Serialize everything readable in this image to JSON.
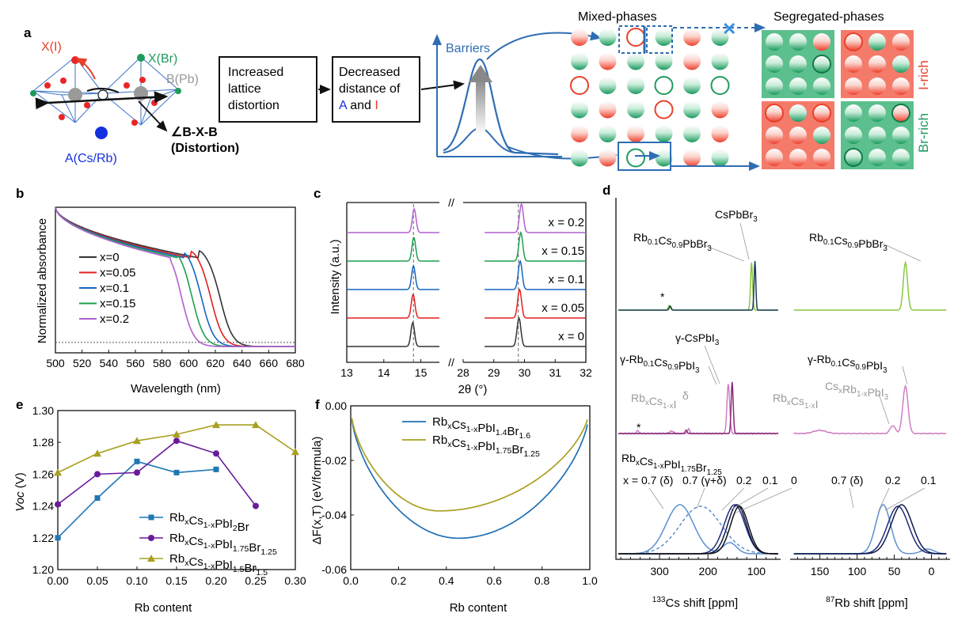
{
  "panel_labels": {
    "a": "a",
    "b": "b",
    "c": "c",
    "d": "d",
    "e": "e",
    "f": "f"
  },
  "schematic": {
    "x_i": "X(I)",
    "x_br": "X(Br)",
    "b_pb": "B(Pb)",
    "a_site": "A(Cs/Rb)",
    "angle": "∠B-X-B",
    "distortion": "(Distortion)",
    "box1": [
      "Increased",
      "lattice",
      "distortion"
    ],
    "box2_l1": "Decreased",
    "box2_l2": "distance of",
    "box2_a": "A",
    "box2_and": " and ",
    "box2_i": "I",
    "barriers": "Barriers",
    "mixed": "Mixed-phases",
    "segregated": "Segregated-phases",
    "i_rich": "I-rich",
    "br_rich": "Br-rich",
    "cross": "✕",
    "colors": {
      "iodine": "#f0402a",
      "bromine": "#1f9a5e",
      "a_site": "#1530e0",
      "barrier": "#2f6db3"
    }
  },
  "chart_data": [
    {
      "panel": "b",
      "type": "line",
      "xlabel": "Wavelength (nm)",
      "ylabel": "Normalized absorbance",
      "xlim": [
        500,
        680
      ],
      "xticks": [
        500,
        520,
        540,
        560,
        580,
        600,
        620,
        640,
        660,
        680
      ],
      "ylim": [
        0,
        1
      ],
      "series": [
        {
          "name": "x=0",
          "color": "#333333",
          "edge": 624,
          "peak": 608
        },
        {
          "name": "x=0.05",
          "color": "#e02020",
          "edge": 617,
          "peak": 602
        },
        {
          "name": "x=0.1",
          "color": "#1565c0",
          "edge": 610,
          "peak": 597
        },
        {
          "name": "x=0.15",
          "color": "#1e9e50",
          "edge": 603,
          "peak": 592
        },
        {
          "name": "x=0.2",
          "color": "#b15fd0",
          "edge": 595,
          "peak": 587
        }
      ]
    },
    {
      "panel": "c",
      "type": "line",
      "xlabel": "2θ (°)",
      "ylabel": "Intensity (a.u.)",
      "xticks_left": [
        13,
        14,
        15
      ],
      "xticks_right": [
        28,
        29,
        30,
        31,
        32
      ],
      "dashed_at": [
        14.8,
        29.8
      ],
      "series": [
        {
          "name": "x = 0",
          "color": "#333333",
          "p1": 14.78,
          "p2": 29.82
        },
        {
          "name": "x = 0.05",
          "color": "#e02020",
          "p1": 14.79,
          "p2": 29.84
        },
        {
          "name": "x = 0.1",
          "color": "#1565c0",
          "p1": 14.8,
          "p2": 29.86
        },
        {
          "name": "x = 0.15",
          "color": "#1e9e50",
          "p1": 14.81,
          "p2": 29.88
        },
        {
          "name": "x = 0.2",
          "color": "#b15fd0",
          "p1": 14.82,
          "p2": 29.9
        }
      ]
    },
    {
      "panel": "e",
      "type": "line",
      "xlabel": "Rb content",
      "ylabel": "Voc (V)",
      "xlim": [
        0,
        0.3
      ],
      "ylim": [
        1.2,
        1.3
      ],
      "xticks": [
        "0.00",
        "0.05",
        "0.10",
        "0.15",
        "0.20",
        "0.25",
        "0.30"
      ],
      "yticks": [
        "1.20",
        "1.22",
        "1.24",
        "1.26",
        "1.28",
        "1.30"
      ],
      "series": [
        {
          "name": "RbxCs1-xPbI2Br",
          "color": "#1f77b4",
          "marker": "square",
          "x": [
            0,
            0.05,
            0.1,
            0.15,
            0.2
          ],
          "y": [
            1.22,
            1.245,
            1.268,
            1.261,
            1.263
          ]
        },
        {
          "name": "RbxCs1-xPbI1.75Br1.25",
          "color": "#6a1b9a",
          "marker": "circle",
          "x": [
            0,
            0.05,
            0.1,
            0.15,
            0.2,
            0.25
          ],
          "y": [
            1.241,
            1.26,
            1.261,
            1.281,
            1.273,
            1.24
          ]
        },
        {
          "name": "RbxCs1-xPbI1.5Br1.5",
          "color": "#a8a020",
          "marker": "triangle",
          "x": [
            0,
            0.05,
            0.1,
            0.15,
            0.2,
            0.25,
            0.3
          ],
          "y": [
            1.261,
            1.273,
            1.281,
            1.285,
            1.291,
            1.291,
            1.274
          ]
        }
      ]
    },
    {
      "panel": "f",
      "type": "line",
      "xlabel": "Rb content",
      "ylabel": "ΔF(x,T) (eV/formula)",
      "xlim": [
        0,
        1
      ],
      "ylim": [
        -0.06,
        0
      ],
      "xticks": [
        "0.0",
        "0.2",
        "0.4",
        "0.6",
        "0.8",
        "1.0"
      ],
      "yticks": [
        "0.00",
        "-0.02",
        "-0.04",
        "-0.06"
      ],
      "series": [
        {
          "name": "RbxCs1-xPbI1.4Br1.6",
          "color": "#1f6fb4",
          "min_x": 0.45,
          "min_y": -0.0485
        },
        {
          "name": "RbxCs1-xPbI1.75Br1.25",
          "color": "#a8a020",
          "min_x": 0.37,
          "min_y": -0.0385
        }
      ]
    }
  ],
  "nmr": {
    "cs_xlabel": "Cs shift [ppm]",
    "cs_sup": "133",
    "rb_xlabel": "Rb shift [ppm]",
    "rb_sup": "87",
    "cs_ticks": [
      "300",
      "200",
      "100"
    ],
    "rb_ticks": [
      "150",
      "100",
      "50",
      "0"
    ],
    "star": "*",
    "row1": {
      "rb01": "Rb0.1Cs0.9PbBr3",
      "cspbbr3": "CsPbBr3"
    },
    "row2": {
      "gcspbi3": "γ-CsPbI3",
      "grb01_l": "γ-Rb0.1Cs0.9PbI3",
      "grb01_r": "γ-Rb0.1Cs0.9PbI3",
      "rbcsi_l": "RbxCs1-xI",
      "delta": "δ",
      "rbcsi_r": "RbxCs1-xI",
      "csrbpbi3": "CsxRb1-xPbI3"
    },
    "row3": {
      "formula": "RbxCs1-xPbI1.75Br1.25",
      "x07d": "x = 0.7 (δ)",
      "x07gd": "0.7 (γ+δ)",
      "x02": "0.2",
      "x01": "0.1",
      "x0": "0",
      "r07d": "0.7 (δ)",
      "r02": "0.2",
      "r01": "0.1"
    }
  }
}
